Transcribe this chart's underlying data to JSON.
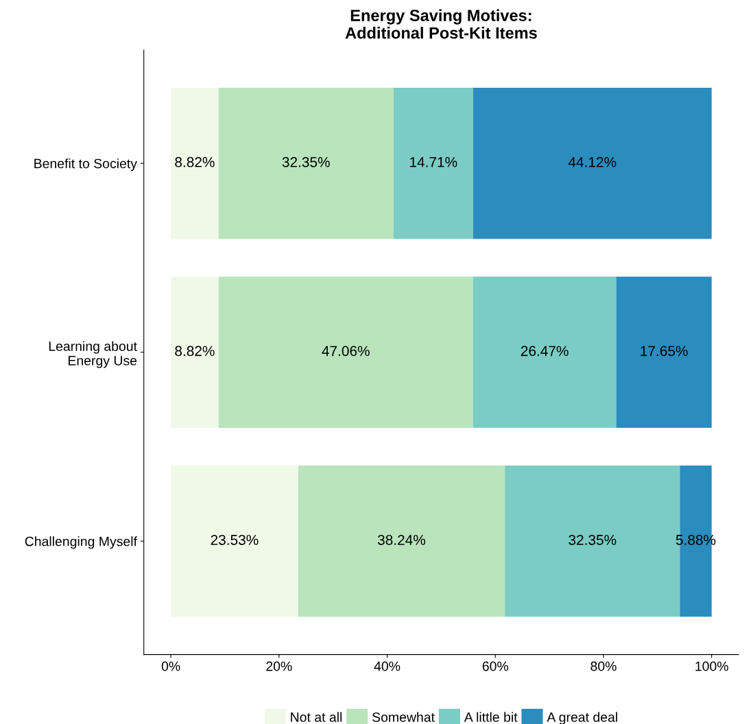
{
  "chart_data": {
    "type": "bar",
    "orientation": "horizontal",
    "stacked": true,
    "title": "Energy Saving Motives:\nAdditional Post-Kit Items",
    "categories": [
      "Benefit to Society",
      "Learning about\nEnergy Use",
      "Challenging Myself"
    ],
    "series": [
      {
        "name": "Not at all",
        "color": "#f0f9e8",
        "values": [
          8.82,
          8.82,
          23.53
        ],
        "value_labels": [
          "8.82%",
          "8.82%",
          "23.53%"
        ]
      },
      {
        "name": "Somewhat",
        "color": "#bae4bc",
        "values": [
          32.35,
          47.06,
          38.24
        ],
        "value_labels": [
          "32.35%",
          "47.06%",
          "38.24%"
        ]
      },
      {
        "name": "A little bit",
        "color": "#7bccc4",
        "values": [
          14.71,
          26.47,
          32.35
        ],
        "value_labels": [
          "14.71%",
          "26.47%",
          "32.35%"
        ]
      },
      {
        "name": "A great deal",
        "color": "#2b8cbe",
        "values": [
          44.12,
          17.65,
          5.88
        ],
        "value_labels": [
          "44.12%",
          "17.65%",
          "5.88%"
        ]
      }
    ],
    "xlim": [
      -5,
      105
    ],
    "xticks": [
      {
        "value": 0,
        "label": "0%"
      },
      {
        "value": 20,
        "label": "20%"
      },
      {
        "value": 40,
        "label": "40%"
      },
      {
        "value": 60,
        "label": "60%"
      },
      {
        "value": 80,
        "label": "80%"
      },
      {
        "value": 100,
        "label": "100%"
      }
    ],
    "grid": false,
    "legend": "bottom"
  }
}
